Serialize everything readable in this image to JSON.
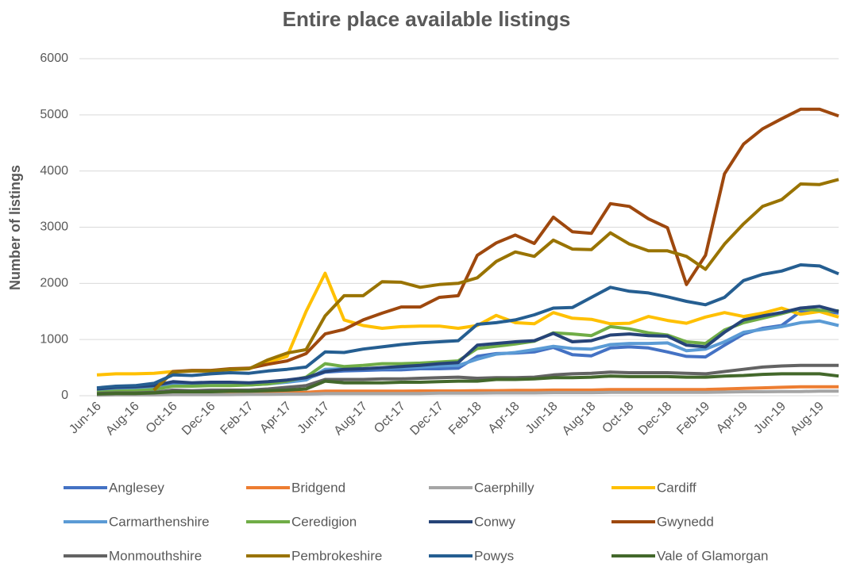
{
  "chart_data": {
    "type": "line",
    "title": "Entire place available listings",
    "y_label": "Number of listings",
    "categories": [
      "Jun-16",
      null,
      "Aug-16",
      null,
      "Oct-16",
      null,
      "Dec-16",
      null,
      "Feb-17",
      null,
      "Apr-17",
      null,
      "Jun-17",
      null,
      "Aug-17",
      null,
      "Oct-17",
      null,
      "Dec-17",
      null,
      "Feb-18",
      null,
      "Apr-18",
      null,
      "Jun-18",
      null,
      "Aug-18",
      null,
      "Oct-18",
      null,
      "Dec-18",
      null,
      "Feb-19",
      null,
      "Apr-19",
      null,
      "Jun-19",
      null,
      "Aug-19",
      null
    ],
    "ylim": [
      0,
      6000
    ],
    "yticks": [
      0,
      1000,
      2000,
      3000,
      4000,
      5000,
      6000
    ],
    "grid": true,
    "legend": "bottom",
    "series": [
      {
        "name": "Anglesey",
        "color": "#4472c4",
        "values": [
          90,
          110,
          120,
          140,
          200,
          190,
          200,
          200,
          190,
          220,
          250,
          300,
          420,
          440,
          450,
          460,
          460,
          480,
          480,
          490,
          700,
          750,
          760,
          780,
          860,
          730,
          710,
          850,
          870,
          850,
          780,
          700,
          690,
          900,
          1100,
          1200,
          1250,
          1500,
          1520,
          1470
        ]
      },
      {
        "name": "Bridgend",
        "color": "#ed7d31",
        "values": [
          20,
          25,
          25,
          30,
          40,
          40,
          40,
          45,
          45,
          50,
          55,
          60,
          80,
          80,
          80,
          80,
          80,
          85,
          85,
          85,
          90,
          90,
          95,
          95,
          100,
          100,
          100,
          110,
          110,
          110,
          110,
          110,
          110,
          120,
          130,
          140,
          150,
          160,
          160,
          160
        ]
      },
      {
        "name": "Caerphilly",
        "color": "#a5a5a5",
        "values": [
          10,
          15,
          15,
          15,
          20,
          20,
          20,
          20,
          25,
          25,
          30,
          30,
          40,
          40,
          40,
          40,
          40,
          40,
          45,
          45,
          45,
          50,
          50,
          50,
          55,
          55,
          55,
          60,
          60,
          60,
          60,
          60,
          60,
          65,
          70,
          70,
          75,
          75,
          80,
          80
        ]
      },
      {
        "name": "Cardiff",
        "color": "#ffc000",
        "values": [
          370,
          390,
          390,
          400,
          430,
          440,
          440,
          460,
          480,
          600,
          700,
          1500,
          2180,
          1350,
          1250,
          1200,
          1230,
          1240,
          1240,
          1200,
          1250,
          1430,
          1300,
          1280,
          1480,
          1380,
          1360,
          1280,
          1290,
          1410,
          1340,
          1290,
          1400,
          1480,
          1410,
          1470,
          1560,
          1450,
          1500,
          1400
        ]
      },
      {
        "name": "Carmarthenshire",
        "color": "#5b9bd5",
        "values": [
          80,
          100,
          110,
          130,
          180,
          180,
          190,
          190,
          190,
          210,
          240,
          280,
          470,
          480,
          480,
          490,
          500,
          510,
          530,
          540,
          650,
          740,
          770,
          820,
          880,
          840,
          830,
          910,
          930,
          930,
          940,
          800,
          830,
          960,
          1130,
          1180,
          1230,
          1300,
          1330,
          1250
        ]
      },
      {
        "name": "Ceredigion",
        "color": "#70ad47",
        "values": [
          60,
          80,
          90,
          110,
          170,
          170,
          180,
          180,
          190,
          210,
          260,
          330,
          570,
          520,
          540,
          570,
          570,
          580,
          600,
          620,
          840,
          880,
          920,
          970,
          1120,
          1100,
          1070,
          1230,
          1190,
          1120,
          1080,
          960,
          930,
          1170,
          1300,
          1380,
          1460,
          1550,
          1520,
          1510
        ]
      },
      {
        "name": "Conwy",
        "color": "#264478",
        "values": [
          120,
          150,
          160,
          180,
          250,
          230,
          240,
          240,
          230,
          250,
          280,
          320,
          430,
          470,
          480,
          500,
          520,
          540,
          570,
          590,
          900,
          930,
          960,
          980,
          1110,
          960,
          980,
          1080,
          1100,
          1070,
          1060,
          900,
          870,
          1130,
          1350,
          1420,
          1480,
          1560,
          1590,
          1500
        ]
      },
      {
        "name": "Gwynedd",
        "color": "#9e480e",
        "values": [
          null,
          null,
          null,
          100,
          430,
          450,
          450,
          480,
          490,
          560,
          620,
          750,
          1100,
          1180,
          1350,
          1470,
          1580,
          1580,
          1750,
          1780,
          2500,
          2720,
          2860,
          2710,
          3180,
          2920,
          2890,
          3420,
          3370,
          3150,
          2990,
          1980,
          2500,
          3950,
          4480,
          4750,
          4930,
          5100,
          5100,
          4980
        ]
      },
      {
        "name": "Monmouthshire",
        "color": "#636363",
        "values": [
          40,
          50,
          50,
          60,
          100,
          90,
          100,
          100,
          100,
          120,
          150,
          180,
          290,
          290,
          290,
          300,
          300,
          310,
          320,
          330,
          310,
          320,
          320,
          330,
          370,
          390,
          400,
          420,
          410,
          410,
          410,
          400,
          390,
          430,
          470,
          510,
          530,
          540,
          540,
          540
        ]
      },
      {
        "name": "Pembrokeshire",
        "color": "#997300",
        "values": [
          null,
          null,
          null,
          100,
          420,
          440,
          440,
          470,
          480,
          640,
          760,
          820,
          1420,
          1780,
          1780,
          2030,
          2020,
          1930,
          1980,
          2000,
          2100,
          2390,
          2560,
          2480,
          2770,
          2610,
          2600,
          2900,
          2700,
          2580,
          2580,
          2480,
          2250,
          2700,
          3060,
          3370,
          3490,
          3770,
          3760,
          3850
        ]
      },
      {
        "name": "Powys",
        "color": "#255e91",
        "values": [
          140,
          170,
          180,
          220,
          370,
          360,
          390,
          410,
          400,
          440,
          470,
          510,
          780,
          770,
          830,
          870,
          910,
          940,
          960,
          980,
          1270,
          1300,
          1350,
          1440,
          1560,
          1570,
          1750,
          1930,
          1860,
          1830,
          1760,
          1680,
          1620,
          1750,
          2050,
          2160,
          2220,
          2330,
          2310,
          2170
        ]
      },
      {
        "name": "Vale of Glamorgan",
        "color": "#43682b",
        "values": [
          30,
          40,
          40,
          50,
          70,
          70,
          70,
          80,
          80,
          90,
          100,
          120,
          260,
          230,
          230,
          230,
          240,
          240,
          250,
          260,
          260,
          290,
          290,
          300,
          320,
          320,
          330,
          350,
          340,
          340,
          340,
          330,
          330,
          350,
          360,
          380,
          390,
          390,
          390,
          350
        ]
      }
    ]
  }
}
